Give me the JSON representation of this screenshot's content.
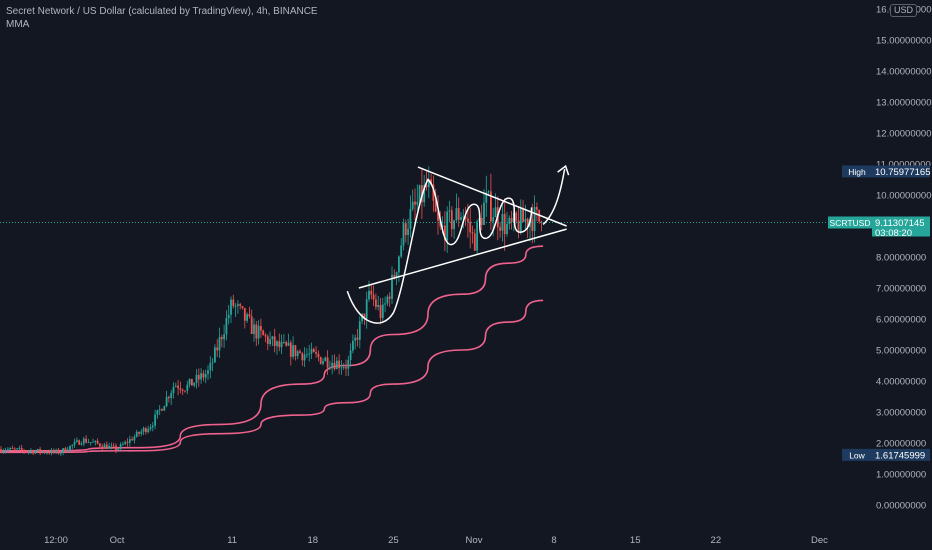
{
  "legend": {
    "title": "Secret Network / US Dollar (calculated by TradingView), 4h, BINANCE",
    "indicator": "MMA"
  },
  "currency_badge": "USD",
  "colors": {
    "background": "#131722",
    "candle_up": "#26a69a",
    "candle_down": "#ef5350",
    "ma": "#f0628e",
    "drawing": "#ffffff",
    "price_line": "#26a69a",
    "label_dark": "#1e3a5f"
  },
  "chart_data": {
    "type": "candlestick",
    "symbol": "SCRTUSD",
    "y_ticks": [
      "0.00000000",
      "1.00000000",
      "2.00000000",
      "3.00000000",
      "4.00000000",
      "5.00000000",
      "6.00000000",
      "7.00000000",
      "8.00000000",
      "9.00000000",
      "10.00000000",
      "11.00000000",
      "12.00000000",
      "13.00000000",
      "14.00000000",
      "15.00000000",
      "16.00000000"
    ],
    "ylim": [
      0,
      16
    ],
    "x_ticks": [
      "12:00",
      "Oct",
      "11",
      "18",
      "25",
      "Nov",
      "15",
      "22",
      "Dec"
    ],
    "price_key_points": [
      {
        "date": "Sep 26",
        "price": 1.7
      },
      {
        "date": "Sep 28",
        "price": 2.1
      },
      {
        "date": "Oct 1",
        "price": 1.8
      },
      {
        "date": "Oct 4",
        "price": 2.6
      },
      {
        "date": "Oct 6",
        "price": 3.9
      },
      {
        "date": "Oct 7",
        "price": 3.8
      },
      {
        "date": "Oct 9",
        "price": 4.3
      },
      {
        "date": "Oct 11",
        "price": 6.5
      },
      {
        "date": "Oct 13",
        "price": 5.6
      },
      {
        "date": "Oct 15",
        "price": 5.1
      },
      {
        "date": "Oct 18",
        "price": 4.8
      },
      {
        "date": "Oct 21",
        "price": 4.5
      },
      {
        "date": "Oct 23",
        "price": 6.8
      },
      {
        "date": "Oct 24",
        "price": 6.1
      },
      {
        "date": "Oct 25",
        "price": 7.3
      },
      {
        "date": "Oct 26",
        "price": 9.0
      },
      {
        "date": "Oct 28",
        "price": 10.3
      },
      {
        "date": "Oct 29",
        "price": 8.8
      },
      {
        "date": "Oct 31",
        "price": 9.5
      },
      {
        "date": "Nov 1",
        "price": 8.5
      },
      {
        "date": "Nov 2",
        "price": 9.8
      },
      {
        "date": "Nov 4",
        "price": 8.9
      },
      {
        "date": "Nov 6",
        "price": 9.3
      },
      {
        "date": "Nov 7",
        "price": 9.11
      }
    ],
    "moving_averages": [
      {
        "points": [
          [
            "Sep 24",
            1.75
          ],
          [
            "Oct 3",
            1.85
          ],
          [
            "Oct 10",
            2.6
          ],
          [
            "Oct 17",
            3.9
          ],
          [
            "Oct 21",
            4.5
          ],
          [
            "Oct 25",
            5.5
          ],
          [
            "Oct 31",
            6.8
          ],
          [
            "Nov 4",
            7.8
          ],
          [
            "Nov 7",
            8.35
          ]
        ]
      },
      {
        "points": [
          [
            "Sep 24",
            1.7
          ],
          [
            "Oct 3",
            1.75
          ],
          [
            "Oct 10",
            2.3
          ],
          [
            "Oct 17",
            2.9
          ],
          [
            "Oct 21",
            3.3
          ],
          [
            "Oct 25",
            3.9
          ],
          [
            "Oct 31",
            5.0
          ],
          [
            "Nov 4",
            5.9
          ],
          [
            "Nov 7",
            6.6
          ]
        ]
      }
    ],
    "current_price": {
      "label": "SCRTUSD",
      "value": "9.11307145",
      "countdown": "03:08:20",
      "price": 9.11307145
    },
    "high_marker": {
      "label": "High",
      "value": "10.75977165",
      "price": 10.75977165
    },
    "low_marker": {
      "label": "Low",
      "value": "1.61745999",
      "price": 1.61745999
    },
    "drawings": [
      {
        "kind": "ascending_trendline",
        "from": [
          "Oct 22",
          7.0
        ],
        "to": [
          "Nov 8",
          8.9
        ]
      },
      {
        "kind": "descending_trendline",
        "from": [
          "Oct 28",
          10.9
        ],
        "to": [
          "Nov 8",
          9.0
        ]
      },
      {
        "kind": "curved_pattern_with_arrow",
        "arrow_target": [
          "Nov 8",
          10.9
        ]
      }
    ],
    "grid": false,
    "legend_position": "top-left"
  }
}
